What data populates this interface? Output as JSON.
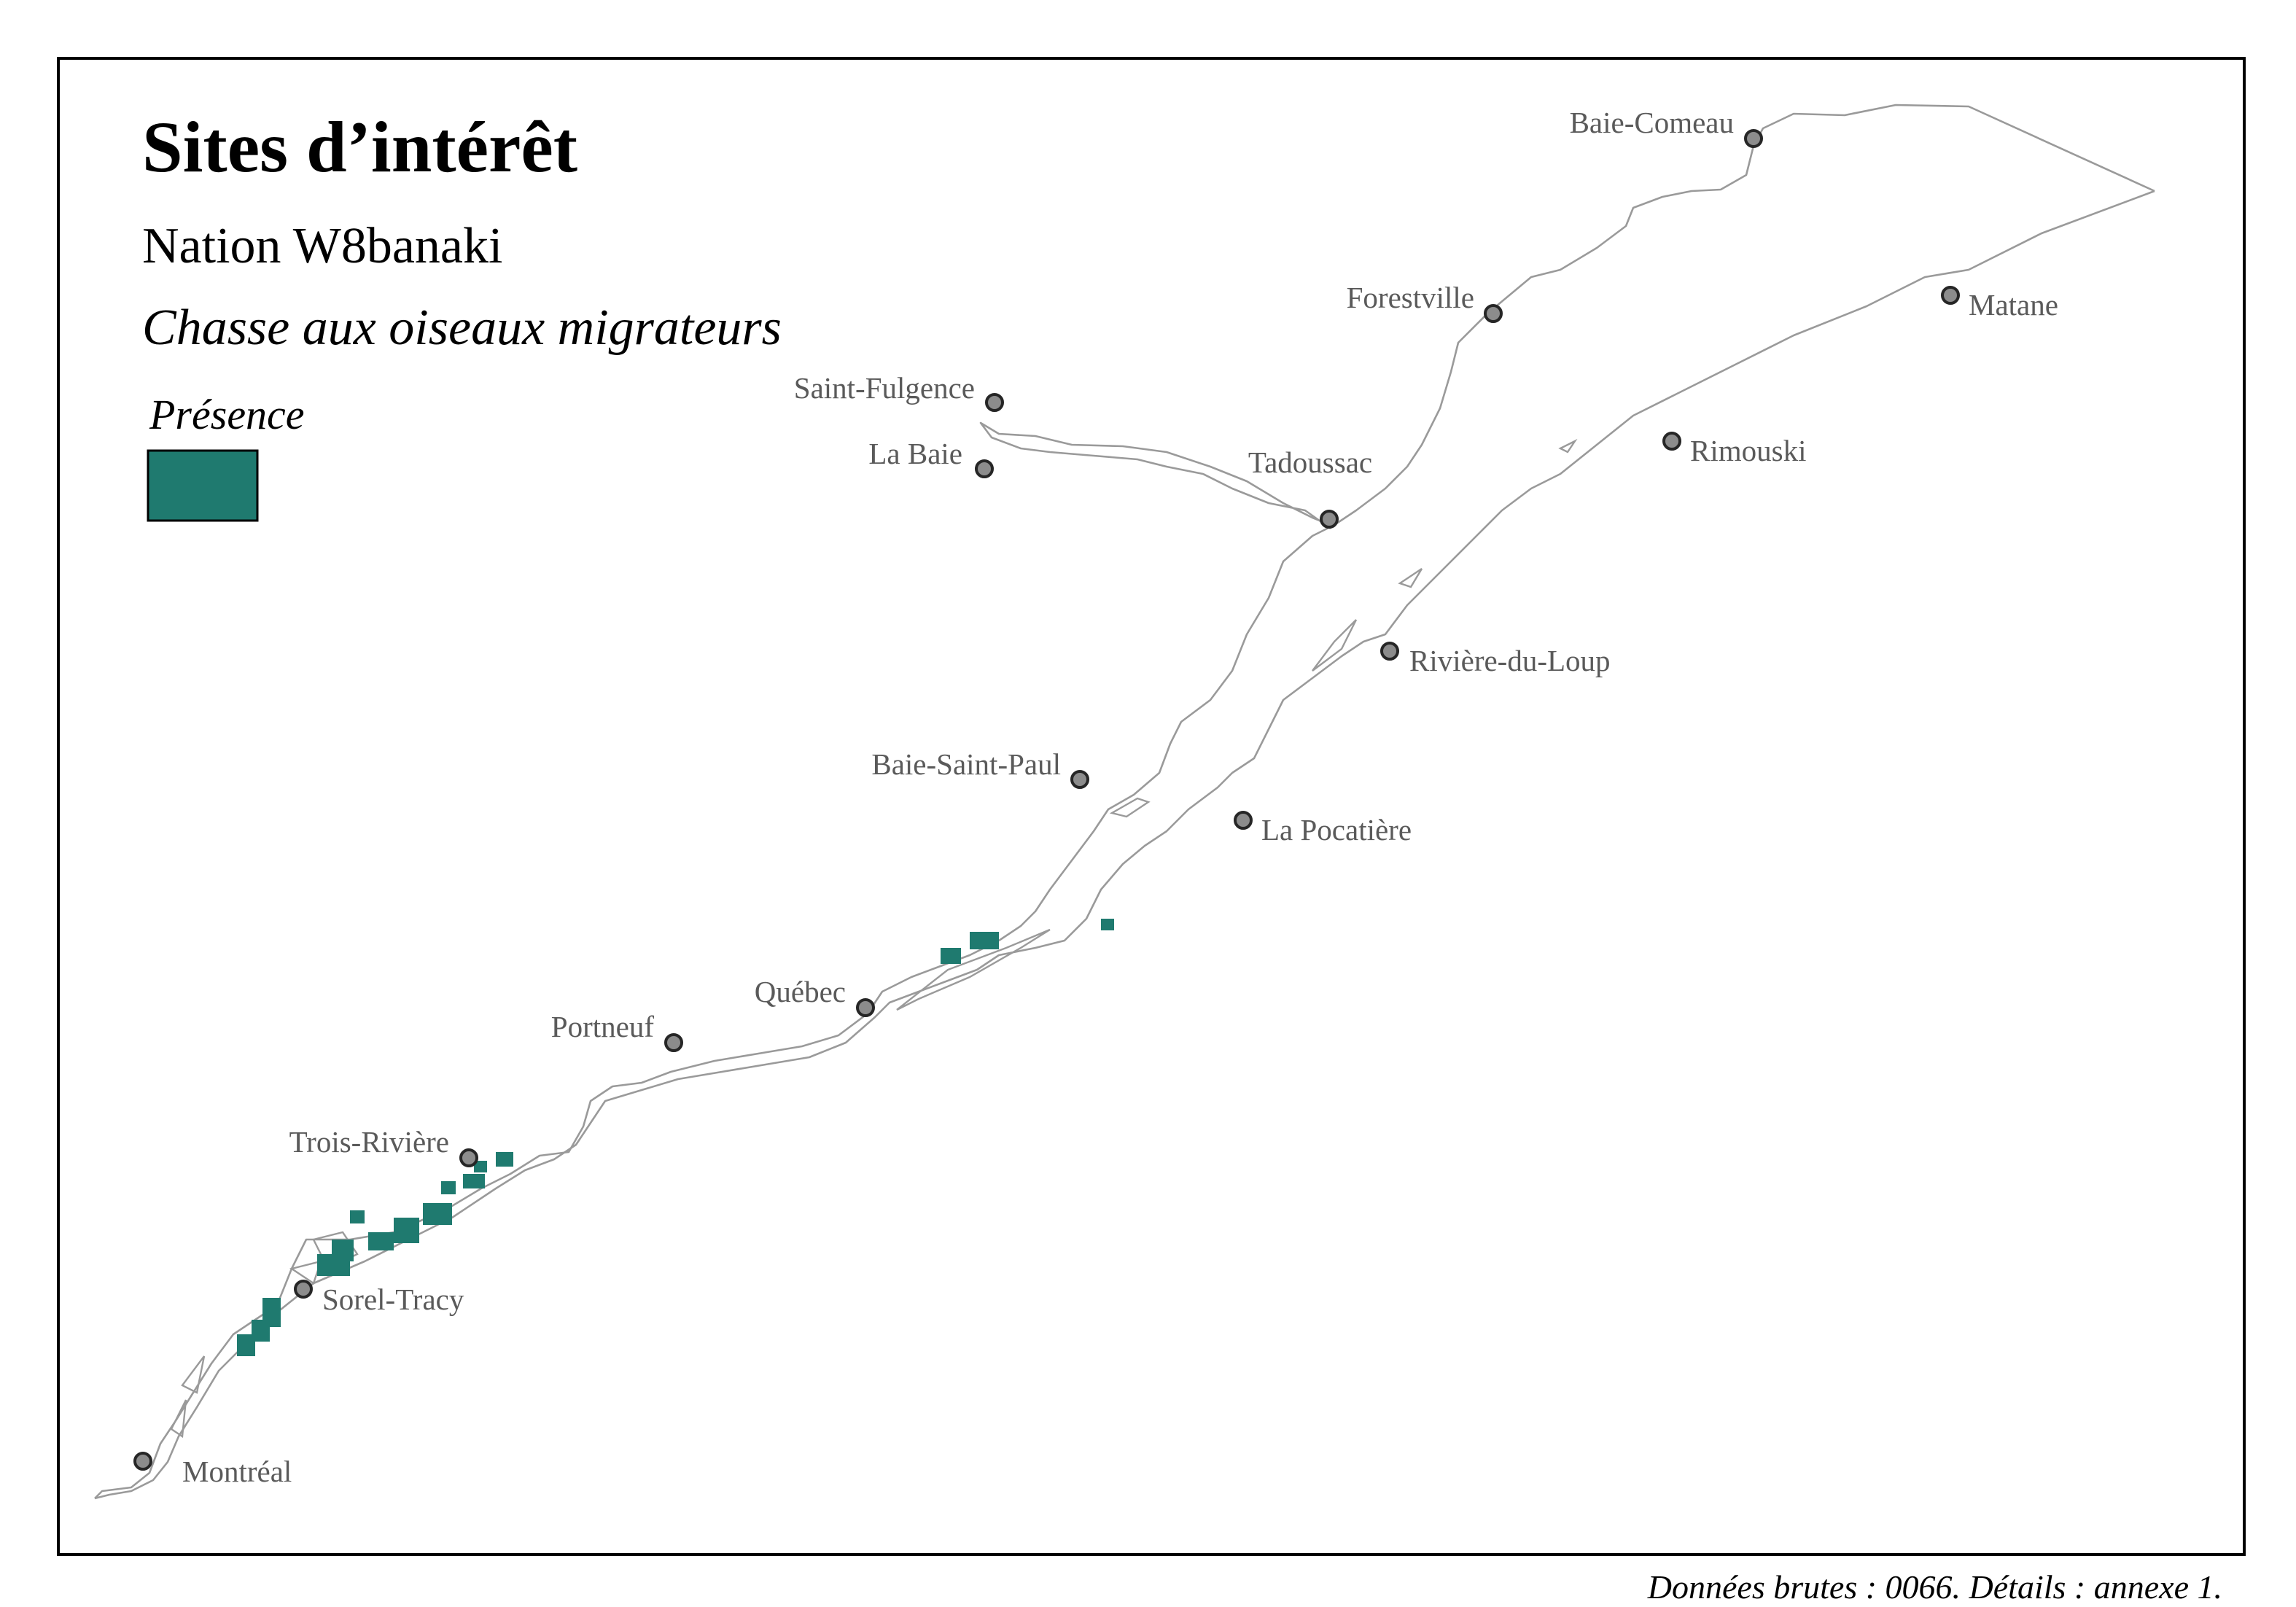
{
  "map": {
    "title": "Sites d’intérêt",
    "subtitle": "Nation W8banaki",
    "theme": "Chasse aux oiseaux migrateurs",
    "legend": {
      "title": "Présence",
      "swatch_color": "#1f7a6f"
    },
    "credit": "Données brutes : 0066. Détails : annexe 1.",
    "colors": {
      "presence": "#1f7a6f",
      "shoreline": "#9a9a9a",
      "city_fill": "#8c8c8c",
      "label": "#5a5a5a"
    }
  },
  "cities": [
    {
      "name": "Baie-Comeau"
    },
    {
      "name": "Forestville"
    },
    {
      "name": "Matane"
    },
    {
      "name": "Saint-Fulgence"
    },
    {
      "name": "La Baie"
    },
    {
      "name": "Tadoussac"
    },
    {
      "name": "Rimouski"
    },
    {
      "name": "Rivière-du-Loup"
    },
    {
      "name": "Baie-Saint-Paul"
    },
    {
      "name": "La Pocatière"
    },
    {
      "name": "Québec"
    },
    {
      "name": "Portneuf"
    },
    {
      "name": "Trois-Rivière"
    },
    {
      "name": "Sorel-Tracy"
    },
    {
      "name": "Montréal"
    }
  ]
}
